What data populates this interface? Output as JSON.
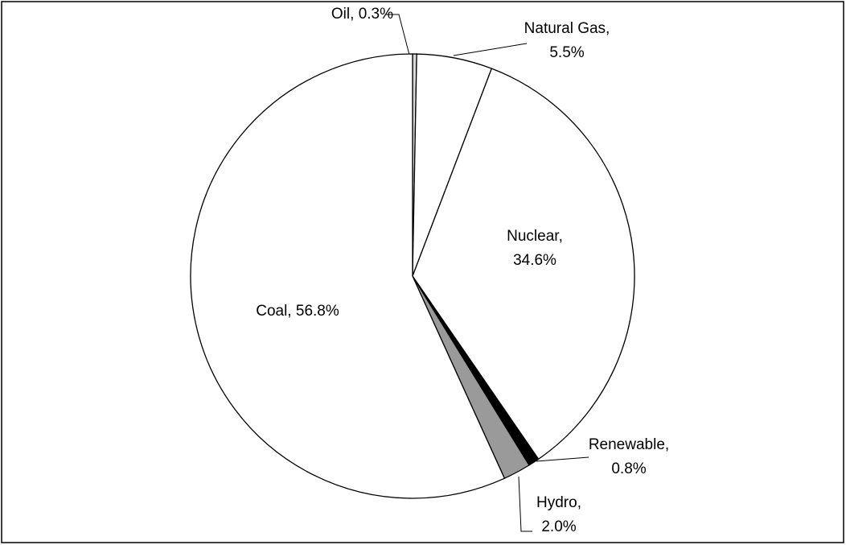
{
  "chart_data": {
    "type": "pie",
    "categories": [
      "Oil,",
      "Natural Gas,",
      "Nuclear,",
      "Renewable,",
      "Hydro,",
      "Coal,"
    ],
    "values": [
      0.3,
      5.5,
      34.6,
      0.8,
      2.0,
      56.8
    ],
    "value_labels": [
      "0.3%",
      "5.5%",
      "34.6%",
      "0.8%",
      "2.0%",
      "56.8%"
    ],
    "colors": [
      "#d8d8d8",
      "#ffffff",
      "#ffffff",
      "#000000",
      "#9a9a9a",
      "#ffffff"
    ]
  }
}
